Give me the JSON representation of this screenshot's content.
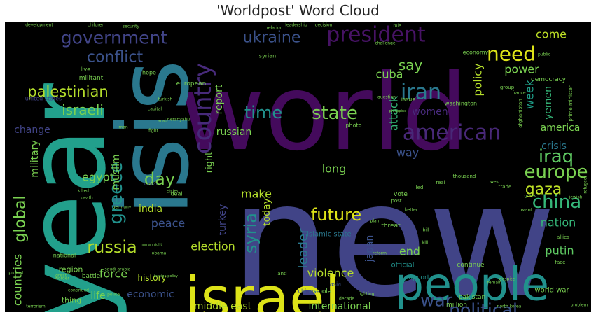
{
  "chart_data": {
    "type": "wordcloud",
    "title": "'Worldpost' Word Cloud",
    "background": "#000000",
    "colormap": "viridis",
    "words": [
      {
        "text": "world",
        "color": "#440a5c"
      },
      {
        "text": "new",
        "color": "#414487"
      },
      {
        "text": "year",
        "color": "#22a08c"
      },
      {
        "text": "isis",
        "color": "#2a788e"
      },
      {
        "text": "israel",
        "color": "#dde318"
      },
      {
        "text": "people",
        "color": "#21918c"
      },
      {
        "text": "ukraine",
        "color": "#3b528b"
      },
      {
        "text": "government",
        "color": "#414487"
      },
      {
        "text": "president",
        "color": "#471365"
      },
      {
        "text": "need",
        "color": "#dde318"
      },
      {
        "text": "conflict",
        "color": "#3b528b"
      },
      {
        "text": "country",
        "color": "#472a7a"
      },
      {
        "text": "iran",
        "color": "#2a788e"
      },
      {
        "text": "palestinian",
        "color": "#b5de2b"
      },
      {
        "text": "israeli",
        "color": "#7ad151"
      },
      {
        "text": "american",
        "color": "#482878"
      },
      {
        "text": "time",
        "color": "#21918c"
      },
      {
        "text": "state",
        "color": "#7ad151"
      },
      {
        "text": "china",
        "color": "#35b779"
      },
      {
        "text": "europe",
        "color": "#7ad151"
      },
      {
        "text": "iraq",
        "color": "#5ec962"
      },
      {
        "text": "russia",
        "color": "#b5de2b"
      },
      {
        "text": "syria",
        "color": "#21918c"
      },
      {
        "text": "gaza",
        "color": "#bddf26"
      },
      {
        "text": "day",
        "color": "#7ad151"
      },
      {
        "text": "greece",
        "color": "#21918c"
      },
      {
        "text": "global",
        "color": "#7ad151"
      },
      {
        "text": "future",
        "color": "#dde318"
      },
      {
        "text": "political",
        "color": "#3b528b"
      },
      {
        "text": "war",
        "color": "#3b528b"
      },
      {
        "text": "leader",
        "color": "#2a788e"
      },
      {
        "text": "nation",
        "color": "#35b779"
      },
      {
        "text": "putin",
        "color": "#5ec962"
      },
      {
        "text": "attack",
        "color": "#35b779"
      },
      {
        "text": "say",
        "color": "#7ad151"
      },
      {
        "text": "cuba",
        "color": "#7ad151"
      },
      {
        "text": "policy",
        "color": "#b5de2b"
      },
      {
        "text": "power",
        "color": "#7ad151"
      },
      {
        "text": "come",
        "color": "#bddf26"
      },
      {
        "text": "week",
        "color": "#1f9e89"
      },
      {
        "text": "yemen",
        "color": "#35b779"
      },
      {
        "text": "women",
        "color": "#472a7a"
      },
      {
        "text": "report",
        "color": "#7ad151"
      },
      {
        "text": "change",
        "color": "#414487"
      },
      {
        "text": "military",
        "color": "#7ad151"
      },
      {
        "text": "egypt",
        "color": "#7ad151"
      },
      {
        "text": "muslim",
        "color": "#7ad151"
      },
      {
        "text": "russian",
        "color": "#7ad151"
      },
      {
        "text": "right",
        "color": "#7ad151"
      },
      {
        "text": "long",
        "color": "#7ad151"
      },
      {
        "text": "way",
        "color": "#3b528b"
      },
      {
        "text": "america",
        "color": "#7ad151"
      },
      {
        "text": "crisis",
        "color": "#2a788e"
      },
      {
        "text": "make",
        "color": "#b5de2b"
      },
      {
        "text": "india",
        "color": "#b5de2b"
      },
      {
        "text": "turkey",
        "color": "#414487"
      },
      {
        "text": "today",
        "color": "#b5de2b"
      },
      {
        "text": "peace",
        "color": "#3b528b"
      },
      {
        "text": "force",
        "color": "#7ad151"
      },
      {
        "text": "election",
        "color": "#b5de2b"
      },
      {
        "text": "violence",
        "color": "#b5de2b"
      },
      {
        "text": "end",
        "color": "#7ad151"
      },
      {
        "text": "japan",
        "color": "#3b528b"
      },
      {
        "text": "countries",
        "color": "#7ad151"
      },
      {
        "text": "life",
        "color": "#7ad151"
      },
      {
        "text": "economic",
        "color": "#3b528b"
      },
      {
        "text": "middle east",
        "color": "#b5de2b"
      },
      {
        "text": "international",
        "color": "#7ad151"
      },
      {
        "text": "history",
        "color": "#b5de2b"
      },
      {
        "text": "region",
        "color": "#7ad151"
      },
      {
        "text": "battle",
        "color": "#7ad151"
      },
      {
        "text": "islamic state",
        "color": "#2a788e"
      },
      {
        "text": "thing",
        "color": "#7ad151"
      },
      {
        "text": "official",
        "color": "#21918c"
      },
      {
        "text": "continue",
        "color": "#7ad151"
      },
      {
        "text": "support",
        "color": "#21918c"
      },
      {
        "text": "world war",
        "color": "#7ad151"
      },
      {
        "text": "million",
        "color": "#7ad151"
      },
      {
        "text": "threat",
        "color": "#7ad151"
      },
      {
        "text": "vote",
        "color": "#7ad151"
      },
      {
        "text": "deal",
        "color": "#7ad151"
      },
      {
        "text": "national",
        "color": "#7ad151"
      },
      {
        "text": "ebola",
        "color": "#7ad151"
      },
      {
        "text": "pakistan",
        "color": "#7ad151"
      },
      {
        "text": "asia",
        "color": "#3b528b"
      },
      {
        "text": "chinese",
        "color": "#3b528b"
      },
      {
        "text": "democracy",
        "color": "#7ad151"
      },
      {
        "text": "economy",
        "color": "#7ad151"
      },
      {
        "text": "european",
        "color": "#7ad151"
      },
      {
        "text": "united states",
        "color": "#414487"
      },
      {
        "text": "militant",
        "color": "#7ad151"
      },
      {
        "text": "hope",
        "color": "#7ad151"
      },
      {
        "text": "live",
        "color": "#7ad151"
      },
      {
        "text": "washington",
        "color": "#7ad151"
      },
      {
        "text": "issue",
        "color": "#7ad151"
      },
      {
        "text": "photo",
        "color": "#7ad151"
      },
      {
        "text": "afghanistan",
        "color": "#7ad151"
      },
      {
        "text": "prime minister",
        "color": "#7ad151"
      },
      {
        "text": "france",
        "color": "#7ad151"
      },
      {
        "text": "group",
        "color": "#7ad151"
      },
      {
        "text": "development",
        "color": "#7ad151"
      },
      {
        "text": "children",
        "color": "#7ad151"
      },
      {
        "text": "security",
        "color": "#7ad151"
      },
      {
        "text": "relation",
        "color": "#7ad151"
      },
      {
        "text": "leadership",
        "color": "#7ad151"
      },
      {
        "text": "decision",
        "color": "#7ad151"
      },
      {
        "text": "syrian",
        "color": "#7ad151"
      },
      {
        "text": "role",
        "color": "#7ad151"
      },
      {
        "text": "challenge",
        "color": "#7ad151"
      },
      {
        "text": "public",
        "color": "#7ad151"
      },
      {
        "text": "netanyahu",
        "color": "#7ad151"
      },
      {
        "text": "human right",
        "color": "#7ad151"
      },
      {
        "text": "iranian",
        "color": "#3b528b"
      },
      {
        "text": "refugee",
        "color": "#7ad151"
      },
      {
        "text": "trade",
        "color": "#7ad151"
      },
      {
        "text": "allies",
        "color": "#7ad151"
      },
      {
        "text": "reform",
        "color": "#7ad151"
      },
      {
        "text": "want",
        "color": "#7ad151"
      },
      {
        "text": "face",
        "color": "#7ad151"
      },
      {
        "text": "despite",
        "color": "#7ad151"
      },
      {
        "text": "remain",
        "color": "#7ad151"
      },
      {
        "text": "north korea",
        "color": "#7ad151"
      },
      {
        "text": "problem",
        "color": "#7ad151"
      },
      {
        "text": "decade",
        "color": "#7ad151"
      },
      {
        "text": "fighting",
        "color": "#7ad151"
      },
      {
        "text": "police",
        "color": "#7ad151"
      },
      {
        "text": "terrorism",
        "color": "#7ad151"
      },
      {
        "text": "continued",
        "color": "#7ad151"
      },
      {
        "text": "protest",
        "color": "#7ad151"
      },
      {
        "text": "border",
        "color": "#7ad151"
      },
      {
        "text": "great",
        "color": "#7ad151"
      },
      {
        "text": "killed",
        "color": "#7ad151"
      },
      {
        "text": "death",
        "color": "#7ad151"
      },
      {
        "text": "germany",
        "color": "#7ad151"
      },
      {
        "text": "thousand",
        "color": "#7ad151"
      },
      {
        "text": "real",
        "color": "#7ad151"
      },
      {
        "text": "led",
        "color": "#7ad151"
      },
      {
        "text": "post",
        "color": "#7ad151"
      },
      {
        "text": "better",
        "color": "#7ad151"
      },
      {
        "text": "obama",
        "color": "#7ad151"
      },
      {
        "text": "saudi arabia",
        "color": "#7ad151"
      },
      {
        "text": "anti",
        "color": "#7ad151"
      },
      {
        "text": "foreign policy",
        "color": "#7ad151"
      },
      {
        "text": "fight",
        "color": "#7ad151"
      },
      {
        "text": "capital",
        "color": "#7ad151"
      },
      {
        "text": "arab",
        "color": "#7ad151"
      },
      {
        "text": "turkish",
        "color": "#7ad151"
      },
      {
        "text": "philippine",
        "color": "#7ad151"
      },
      {
        "text": "question",
        "color": "#7ad151"
      },
      {
        "text": "west",
        "color": "#7ad151"
      },
      {
        "text": "greek",
        "color": "#7ad151"
      },
      {
        "text": "jewish",
        "color": "#7ad151"
      },
      {
        "text": "bill",
        "color": "#7ad151"
      },
      {
        "text": "plan",
        "color": "#7ad151"
      },
      {
        "text": "claim",
        "color": "#7ad151"
      },
      {
        "text": "man",
        "color": "#7ad151"
      },
      {
        "text": "kill",
        "color": "#7ad151"
      }
    ]
  }
}
